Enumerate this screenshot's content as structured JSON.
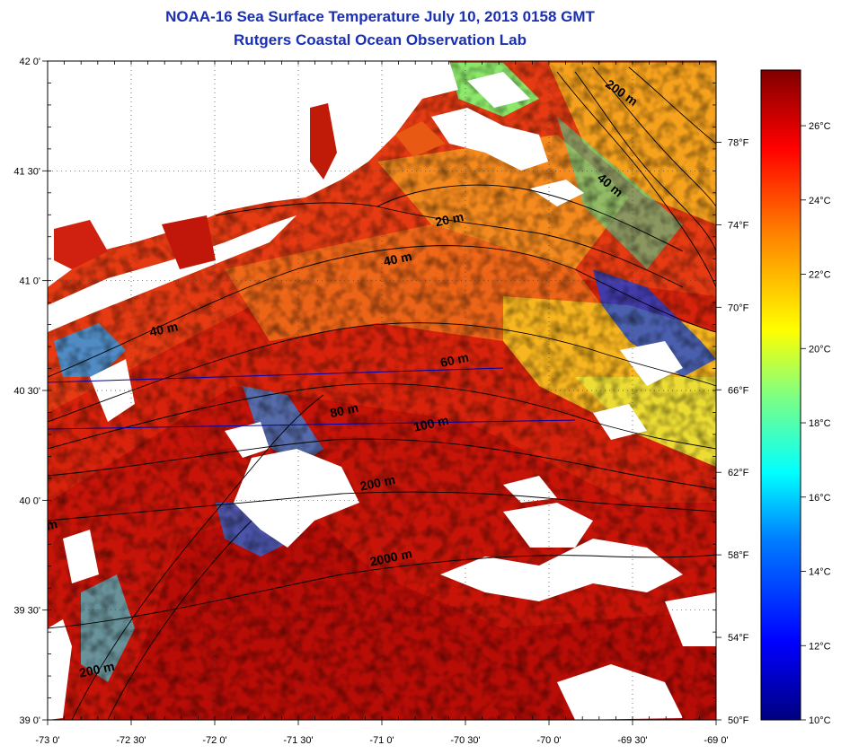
{
  "title_line1": "NOAA-16 Sea Surface Temperature July 10, 2013 0158 GMT",
  "title_line2": "Rutgers Coastal Ocean Observation Lab",
  "lat_labels": [
    {
      "value": 42.0,
      "label": "42 0'"
    },
    {
      "value": 41.5,
      "label": "41 30'"
    },
    {
      "value": 41.0,
      "label": "41 0'"
    },
    {
      "value": 40.5,
      "label": "40 30'"
    },
    {
      "value": 40.0,
      "label": "40 0'"
    },
    {
      "value": 39.5,
      "label": "39 30'"
    },
    {
      "value": 39.0,
      "label": "39 0'"
    }
  ],
  "lon_labels": [
    {
      "value": -73.0,
      "label": "-73 0'"
    },
    {
      "value": -72.5,
      "label": "-72 30'"
    },
    {
      "value": -72.0,
      "label": "-72 0'"
    },
    {
      "value": -71.5,
      "label": "-71 30'"
    },
    {
      "value": -71.0,
      "label": "-71 0'"
    },
    {
      "value": -70.5,
      "label": "-70 30'"
    },
    {
      "value": -70.0,
      "label": "-70 0'"
    },
    {
      "value": -69.5,
      "label": "-69 30'"
    },
    {
      "value": -69.0,
      "label": "-69 0'"
    }
  ],
  "fahrenheit_labels": [
    {
      "value": 50,
      "label": "50°F"
    },
    {
      "value": 54,
      "label": "54°F"
    },
    {
      "value": 58,
      "label": "58°F"
    },
    {
      "value": 62,
      "label": "62°F"
    },
    {
      "value": 66,
      "label": "66°F"
    },
    {
      "value": 70,
      "label": "70°F"
    },
    {
      "value": 74,
      "label": "74°F"
    },
    {
      "value": 78,
      "label": "78°F"
    }
  ],
  "celsius_labels": [
    {
      "value": 10,
      "label": "10°C"
    },
    {
      "value": 12,
      "label": "12°C"
    },
    {
      "value": 14,
      "label": "14°C"
    },
    {
      "value": 16,
      "label": "16°C"
    },
    {
      "value": 18,
      "label": "18°C"
    },
    {
      "value": 20,
      "label": "20°C"
    },
    {
      "value": 22,
      "label": "22°C"
    },
    {
      "value": 24,
      "label": "24°C"
    },
    {
      "value": 26,
      "label": "26°C"
    }
  ],
  "colorbar_range_c": [
    10,
    27.5
  ],
  "colormap": [
    "#00007f",
    "#0000ff",
    "#0080ff",
    "#00ffff",
    "#80ff80",
    "#ffff00",
    "#ff8000",
    "#ff0000",
    "#800000"
  ],
  "depth_labels": [
    {
      "label": "200 m",
      "lon": -69.58,
      "lat": 41.84
    },
    {
      "label": "40 m",
      "lon": -69.65,
      "lat": 41.42
    },
    {
      "label": "20 m",
      "lon": -70.59,
      "lat": 41.26
    },
    {
      "label": "40 m",
      "lon": -70.9,
      "lat": 41.08
    },
    {
      "label": "40 m",
      "lon": -72.3,
      "lat": 40.76
    },
    {
      "label": "60 m",
      "lon": -70.56,
      "lat": 40.62
    },
    {
      "label": "80 m",
      "lon": -71.22,
      "lat": 40.39
    },
    {
      "label": "100 m",
      "lon": -70.7,
      "lat": 40.33
    },
    {
      "label": "200 m",
      "lon": -71.02,
      "lat": 40.06
    },
    {
      "label": "2000 m",
      "lon": -70.94,
      "lat": 39.72
    },
    {
      "label": "200 m",
      "lon": -72.7,
      "lat": 39.21
    },
    {
      "label": "m",
      "lon": -72.97,
      "lat": 39.87
    }
  ],
  "colors": {
    "title": "#1a2fb4",
    "land": "#ffffff",
    "cloud": "#ffffff",
    "line": "#000000",
    "frame_line": "#0000aa"
  }
}
